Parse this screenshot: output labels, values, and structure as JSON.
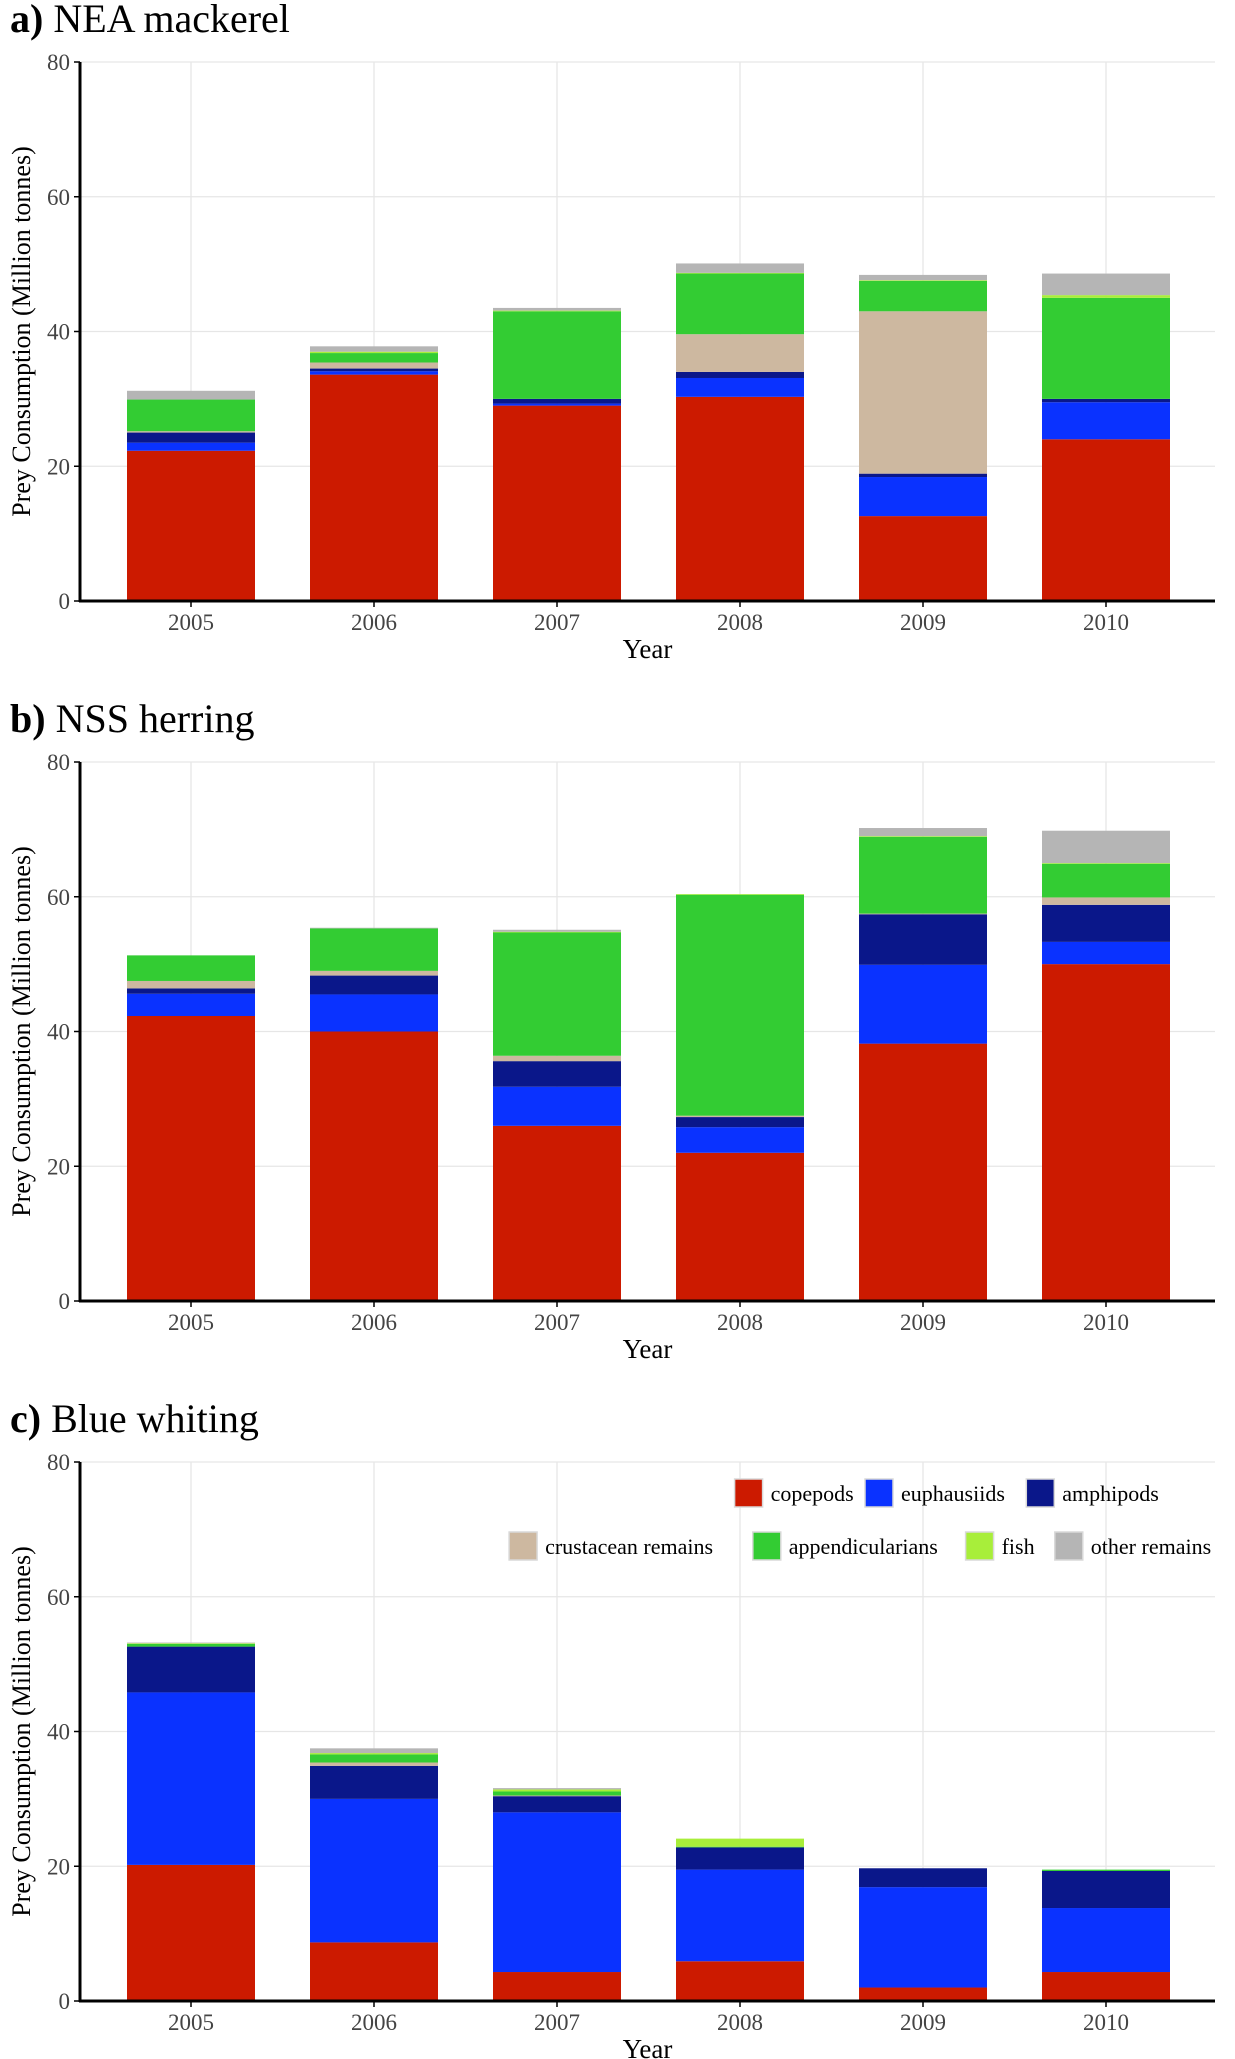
{
  "chart_data": [
    {
      "panel_label": "a)",
      "title": "NEA mackerel",
      "type": "bar",
      "stacked": true,
      "categories": [
        "2005",
        "2006",
        "2007",
        "2008",
        "2009",
        "2010"
      ],
      "xlabel": "Year",
      "ylabel": "Prey Consumption (Million tonnes)",
      "ylim": [
        0,
        80
      ],
      "yticks": [
        0,
        20,
        40,
        60,
        80
      ],
      "grid": true,
      "series": [
        {
          "name": "copepods",
          "color": "#cc1a00",
          "values": [
            22.3,
            33.6,
            29.0,
            30.3,
            12.6,
            24.0
          ]
        },
        {
          "name": "euphausiids",
          "color": "#0a32ff",
          "values": [
            1.2,
            0.5,
            0.3,
            2.8,
            5.8,
            5.5
          ]
        },
        {
          "name": "amphipods",
          "color": "#0a178a",
          "values": [
            1.5,
            0.4,
            0.7,
            0.9,
            0.5,
            0.5
          ]
        },
        {
          "name": "crustacean  remains",
          "color": "#cdb8a0",
          "values": [
            0.2,
            0.9,
            0.0,
            5.6,
            24.1,
            0.0
          ]
        },
        {
          "name": "appendicularians",
          "color": "#33cc33",
          "values": [
            4.7,
            1.4,
            13.0,
            9.0,
            4.5,
            15.0
          ]
        },
        {
          "name": "fish",
          "color": "#a8ee3a",
          "values": [
            0.0,
            0.2,
            0.1,
            0.1,
            0.1,
            0.4
          ]
        },
        {
          "name": "other  remains",
          "color": "#b5b5b5",
          "values": [
            1.3,
            0.8,
            0.4,
            1.4,
            0.8,
            3.2
          ]
        }
      ]
    },
    {
      "panel_label": "b)",
      "title": "NSS herring",
      "type": "bar",
      "stacked": true,
      "categories": [
        "2005",
        "2006",
        "2007",
        "2008",
        "2009",
        "2010"
      ],
      "xlabel": "Year",
      "ylabel": "Prey Consumption (Million tonnes)",
      "ylim": [
        0,
        80
      ],
      "yticks": [
        0,
        20,
        40,
        60,
        80
      ],
      "grid": true,
      "series": [
        {
          "name": "copepods",
          "color": "#cc1a00",
          "values": [
            42.3,
            40.0,
            26.0,
            22.0,
            38.2,
            50.0
          ]
        },
        {
          "name": "euphausiids",
          "color": "#0a32ff",
          "values": [
            3.3,
            5.5,
            5.8,
            3.8,
            11.7,
            3.3
          ]
        },
        {
          "name": "amphipods",
          "color": "#0a178a",
          "values": [
            0.8,
            2.8,
            3.8,
            1.5,
            7.5,
            5.5
          ]
        },
        {
          "name": "crustacean  remains",
          "color": "#cdb8a0",
          "values": [
            1.1,
            0.7,
            0.8,
            0.2,
            0.1,
            1.1
          ]
        },
        {
          "name": "appendicularians",
          "color": "#33cc33",
          "values": [
            3.8,
            6.3,
            18.3,
            32.8,
            11.4,
            5.0
          ]
        },
        {
          "name": "fish",
          "color": "#a8ee3a",
          "values": [
            0.0,
            0.0,
            0.1,
            0.1,
            0.1,
            0.1
          ]
        },
        {
          "name": "other  remains",
          "color": "#b5b5b5",
          "values": [
            0.0,
            0.1,
            0.3,
            0.0,
            1.2,
            4.8
          ]
        }
      ]
    },
    {
      "panel_label": "c)",
      "title": "Blue whiting",
      "type": "bar",
      "stacked": true,
      "categories": [
        "2005",
        "2006",
        "2007",
        "2008",
        "2009",
        "2010"
      ],
      "xlabel": "Year",
      "ylabel": "Prey Consumption (Million tonnes)",
      "ylim": [
        0,
        80
      ],
      "yticks": [
        0,
        20,
        40,
        60,
        80
      ],
      "grid": true,
      "legend_position": "top-right",
      "series": [
        {
          "name": "copepods",
          "color": "#cc1a00",
          "values": [
            20.2,
            8.7,
            4.3,
            5.9,
            2.0,
            4.3
          ]
        },
        {
          "name": "euphausiids",
          "color": "#0a32ff",
          "values": [
            25.6,
            21.3,
            23.7,
            13.6,
            14.9,
            9.5
          ]
        },
        {
          "name": "amphipods",
          "color": "#0a178a",
          "values": [
            6.8,
            4.9,
            2.4,
            3.3,
            2.8,
            5.5
          ]
        },
        {
          "name": "crustacean  remains",
          "color": "#cdb8a0",
          "values": [
            0.0,
            0.5,
            0.1,
            0.0,
            0.0,
            0.0
          ]
        },
        {
          "name": "appendicularians",
          "color": "#33cc33",
          "values": [
            0.4,
            1.2,
            0.6,
            0.1,
            0.0,
            0.2
          ]
        },
        {
          "name": "fish",
          "color": "#a8ee3a",
          "values": [
            0.1,
            0.2,
            0.3,
            1.2,
            0.0,
            0.0
          ]
        },
        {
          "name": "other  remains",
          "color": "#b5b5b5",
          "values": [
            0.1,
            0.7,
            0.2,
            0.0,
            0.0,
            0.0
          ]
        }
      ]
    }
  ]
}
